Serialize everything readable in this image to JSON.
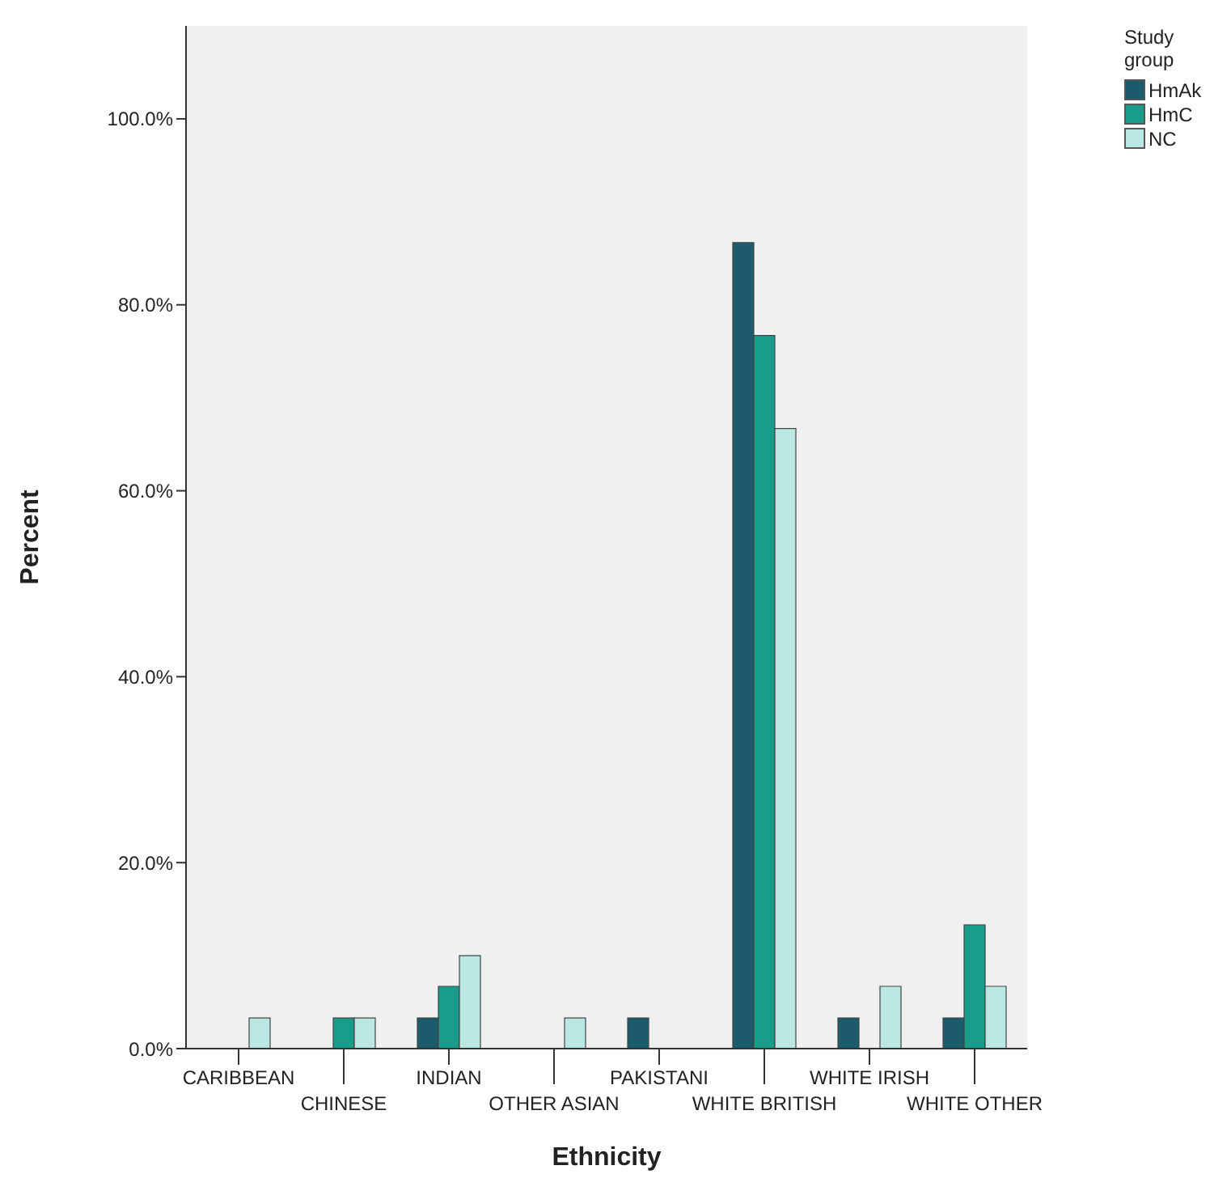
{
  "chart_data": {
    "type": "bar",
    "xlabel": "Ethnicity",
    "ylabel": "Percent",
    "legend_title": "Study group",
    "categories": [
      "CARIBBEAN",
      "CHINESE",
      "INDIAN",
      "OTHER ASIAN",
      "PAKISTANI",
      "WHITE BRITISH",
      "WHITE IRISH",
      "WHITE OTHER"
    ],
    "series": [
      {
        "name": "HmAk",
        "color": "#1c5b6b",
        "values": [
          0,
          0,
          3.3,
          0,
          3.3,
          86.7,
          3.3,
          3.3
        ]
      },
      {
        "name": "HmC",
        "color": "#1a9c8a",
        "values": [
          0,
          3.3,
          6.7,
          0,
          0,
          76.7,
          0,
          13.3
        ]
      },
      {
        "name": "NC",
        "color": "#b9e8e3",
        "values": [
          3.3,
          3.3,
          10,
          3.3,
          0,
          66.7,
          6.7,
          6.7
        ]
      }
    ],
    "ylim": [
      0,
      110
    ],
    "yticks": [
      {
        "value": 0,
        "label": "0.0%"
      },
      {
        "value": 20,
        "label": "20.0%"
      },
      {
        "value": 40,
        "label": "40.0%"
      },
      {
        "value": 60,
        "label": "60.0%"
      },
      {
        "value": 80,
        "label": "80.0%"
      },
      {
        "value": 100,
        "label": "100.0%"
      }
    ],
    "grid": false,
    "legend": "top right"
  }
}
